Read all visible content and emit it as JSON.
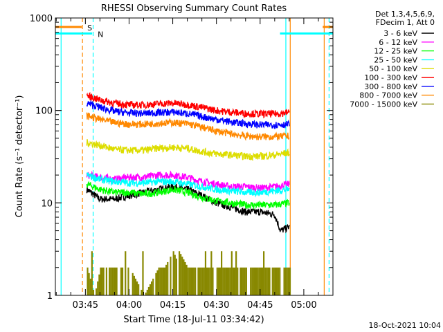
{
  "chart_data": {
    "type": "line",
    "title": "RHESSI Observing Summary Count Rates",
    "xlabel": "Start Time (18-Jul-11 03:34:42)",
    "ylabel": "Count Rate (s⁻¹ detector⁻¹)",
    "yscale": "log",
    "ylim": [
      1,
      1000
    ],
    "y_ticks": [
      1,
      10,
      100,
      1000
    ],
    "y_tick_labels": [
      "1",
      "10",
      "100",
      "1000"
    ],
    "xlim": [
      "03:34:42",
      "05:10:00"
    ],
    "x_ticks": [
      "03:45",
      "04:00",
      "04:15",
      "04:30",
      "04:45",
      "05:00"
    ],
    "legend_header": [
      "Det 1,3,4,5,6,9,",
      "FDecim 1, Att 0"
    ],
    "legend_position": "top-right-outside",
    "timestamp": "18-Oct-2021 10:04",
    "grid": false,
    "flags": [
      {
        "label": "S",
        "color": "#ff8800",
        "start": "03:34:42",
        "end": "03:43:45",
        "level": 800,
        "start2": "05:06:30",
        "end2": "05:10:00"
      },
      {
        "label": "N",
        "color": "#00ffff",
        "start": "03:34:42",
        "end": "03:47:20",
        "level": 680,
        "start2": "04:51:50",
        "end2": "05:10:00"
      }
    ],
    "verticals": [
      {
        "time": "03:36:40",
        "color": "#00ffff",
        "style": "solid"
      },
      {
        "time": "03:44:00",
        "color": "#ff8800",
        "style": "dashed"
      },
      {
        "time": "03:47:40",
        "color": "#00ffff",
        "style": "dashed"
      },
      {
        "time": "04:53:50",
        "color": "#00ffff",
        "style": "solid"
      },
      {
        "time": "04:55:20",
        "color": "#ff8800",
        "style": "solid"
      },
      {
        "time": "05:07:00",
        "color": "#ff8800",
        "style": "solid"
      },
      {
        "time": "05:08:40",
        "color": "#00ffff",
        "style": "dashed"
      }
    ],
    "data_interval": [
      "03:45:30",
      "04:55:00"
    ],
    "series": [
      {
        "name": "3 - 6 keV",
        "color": "#000000",
        "x": [
          "03:45:30",
          "03:50",
          "03:55",
          "04:00",
          "04:05",
          "04:10",
          "04:15",
          "04:20",
          "04:25",
          "04:30",
          "04:35",
          "04:40",
          "04:45",
          "04:50",
          "04:52",
          "04:55"
        ],
        "values": [
          14,
          11,
          11,
          12,
          13,
          14,
          15,
          14,
          12,
          10,
          9,
          8,
          8,
          7.5,
          5,
          5.5
        ]
      },
      {
        "name": "6 - 12 keV",
        "color": "#ff00ff",
        "x": [
          "03:45:30",
          "03:50",
          "03:55",
          "04:00",
          "04:05",
          "04:10",
          "04:15",
          "04:20",
          "04:25",
          "04:30",
          "04:35",
          "04:40",
          "04:45",
          "04:50",
          "04:55"
        ],
        "values": [
          20,
          19,
          18,
          19,
          19,
          20,
          20,
          19,
          17,
          16,
          15,
          15,
          14.5,
          15,
          16
        ]
      },
      {
        "name": "12 - 25 keV",
        "color": "#00ff00",
        "x": [
          "03:45:30",
          "03:50",
          "03:55",
          "04:00",
          "04:05",
          "04:10",
          "04:15",
          "04:20",
          "04:25",
          "04:30",
          "04:35",
          "04:40",
          "04:45",
          "04:50",
          "04:55"
        ],
        "values": [
          16,
          14,
          13,
          13,
          12.5,
          13,
          14,
          13,
          11.5,
          10.5,
          10,
          9.5,
          9.5,
          9.5,
          10
        ]
      },
      {
        "name": "25 - 50 keV",
        "color": "#00ffff",
        "x": [
          "03:45:30",
          "03:50",
          "03:55",
          "04:00",
          "04:05",
          "04:10",
          "04:15",
          "04:20",
          "04:25",
          "04:30",
          "04:35",
          "04:40",
          "04:45",
          "04:50",
          "04:55"
        ],
        "values": [
          20,
          18,
          17,
          16.5,
          16.5,
          17,
          17,
          16,
          15,
          14,
          13.5,
          13,
          13,
          13.5,
          14
        ]
      },
      {
        "name": "50 - 100 keV",
        "color": "#dddd00",
        "x": [
          "03:45:30",
          "03:50",
          "03:55",
          "04:00",
          "04:05",
          "04:10",
          "04:15",
          "04:20",
          "04:25",
          "04:30",
          "04:35",
          "04:40",
          "04:45",
          "04:50",
          "04:55"
        ],
        "values": [
          45,
          42,
          38,
          37,
          37,
          39,
          40,
          39,
          36,
          34,
          33,
          32,
          32,
          33,
          35
        ]
      },
      {
        "name": "100 - 300 keV",
        "color": "#ff0000",
        "x": [
          "03:45:30",
          "03:50",
          "03:55",
          "04:00",
          "04:05",
          "04:10",
          "04:15",
          "04:20",
          "04:25",
          "04:30",
          "04:35",
          "04:40",
          "04:45",
          "04:50",
          "04:55"
        ],
        "values": [
          145,
          130,
          120,
          115,
          115,
          118,
          120,
          116,
          108,
          100,
          96,
          93,
          92,
          92,
          95
        ]
      },
      {
        "name": "300 - 800 keV",
        "color": "#0000ff",
        "x": [
          "03:45:30",
          "03:50",
          "03:55",
          "04:00",
          "04:05",
          "04:10",
          "04:15",
          "04:20",
          "04:25",
          "04:30",
          "04:35",
          "04:40",
          "04:45",
          "04:50",
          "04:55"
        ],
        "values": [
          120,
          108,
          98,
          94,
          93,
          95,
          96,
          93,
          86,
          80,
          75,
          72,
          70,
          70,
          71
        ]
      },
      {
        "name": "800 - 7000 keV",
        "color": "#ff8800",
        "x": [
          "03:45:30",
          "03:50",
          "03:55",
          "04:00",
          "04:05",
          "04:10",
          "04:15",
          "04:20",
          "04:25",
          "04:30",
          "04:35",
          "04:40",
          "04:45",
          "04:50",
          "04:55"
        ],
        "values": [
          88,
          80,
          74,
          71,
          71,
          73,
          74,
          72,
          66,
          60,
          56,
          53,
          52,
          52,
          53
        ]
      },
      {
        "name": "7000 - 15000 keV",
        "color": "#888800",
        "x": [
          "03:45:30",
          "03:48",
          "03:50",
          "04:00",
          "04:05",
          "04:10",
          "04:12",
          "04:15",
          "04:16",
          "04:17",
          "04:20",
          "04:25",
          "04:30",
          "04:35",
          "04:40",
          "04:45",
          "04:50",
          "04:55"
        ],
        "values": [
          2,
          1,
          2,
          2,
          1,
          2,
          2,
          3,
          2.5,
          3,
          2,
          2,
          2,
          2,
          2,
          2,
          2,
          2
        ]
      }
    ]
  }
}
